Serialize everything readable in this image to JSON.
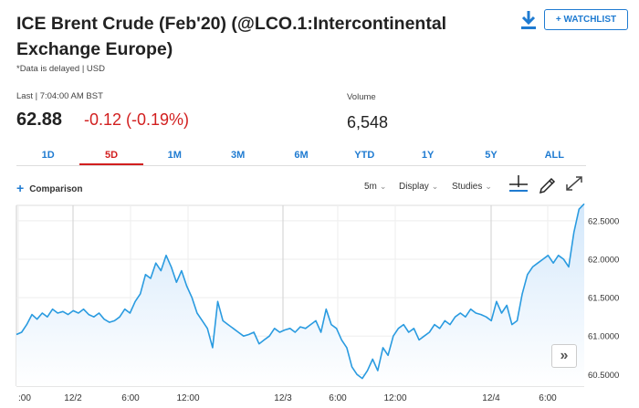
{
  "header": {
    "title": "ICE Brent Crude (Feb'20) (@LCO.1:Intercontinental Exchange Europe)",
    "note": "*Data is delayed | USD",
    "download_icon": "download-icon",
    "watchlist_label": "+ WATCHLIST"
  },
  "quote": {
    "last_label": "Last | 7:04:00 AM BST",
    "last_price": "62.88",
    "change": "-0.12 (-0.19%)",
    "volume_label": "Volume",
    "volume_value": "6,548"
  },
  "tabs": [
    {
      "label": "1D",
      "active": false
    },
    {
      "label": "5D",
      "active": true
    },
    {
      "label": "1M",
      "active": false
    },
    {
      "label": "3M",
      "active": false
    },
    {
      "label": "6M",
      "active": false
    },
    {
      "label": "YTD",
      "active": false
    },
    {
      "label": "1Y",
      "active": false
    },
    {
      "label": "5Y",
      "active": false
    },
    {
      "label": "ALL",
      "active": false
    }
  ],
  "toolbar": {
    "comparison_label": "Comparison",
    "interval": "5m",
    "display": "Display",
    "studies": "Studies"
  },
  "colors": {
    "accent": "#1f7bd1",
    "negative": "#d21f1f",
    "line": "#2a9be0",
    "area": "#d4e8fb"
  },
  "chart_data": {
    "type": "area",
    "xlabel": "",
    "ylabel": "",
    "ylim": [
      60.35,
      62.7
    ],
    "y_ticks": [
      "62.5000",
      "62.0000",
      "61.5000",
      "61.0000",
      "60.5000"
    ],
    "x_ticks": [
      ":00",
      "12/2",
      "6:00",
      "12:00",
      "12/3",
      "6:00",
      "12:00",
      "12/4",
      "6:00"
    ],
    "grid": true,
    "series": [
      {
        "values": [
          61.02,
          61.05,
          61.15,
          61.28,
          61.22,
          61.3,
          61.25,
          61.35,
          61.3,
          61.32,
          61.28,
          61.33,
          61.3,
          61.35,
          61.28,
          61.25,
          61.3,
          61.22,
          61.18,
          61.2,
          61.25,
          61.35,
          61.3,
          61.45,
          61.55,
          61.8,
          61.75,
          61.95,
          61.85,
          62.05,
          61.9,
          61.7,
          61.85,
          61.65,
          61.5,
          61.3,
          61.2,
          61.1,
          60.85,
          61.45,
          61.2,
          61.15,
          61.1,
          61.05,
          61.0,
          61.02,
          61.05,
          60.9,
          60.95,
          61.0,
          61.1,
          61.05,
          61.08,
          61.1,
          61.05,
          61.12,
          61.1,
          61.15,
          61.2,
          61.05,
          61.35,
          61.15,
          61.1,
          60.95,
          60.85,
          60.6,
          60.5,
          60.45,
          60.55,
          60.7,
          60.55,
          60.85,
          60.75,
          61.0,
          61.1,
          61.15,
          61.05,
          61.1,
          60.95,
          61.0,
          61.05,
          61.15,
          61.1,
          61.2,
          61.15,
          61.25,
          61.3,
          61.25,
          61.35,
          61.3,
          61.28,
          61.25,
          61.2,
          61.45,
          61.3,
          61.4,
          61.15,
          61.2,
          61.55,
          61.8,
          61.9,
          61.95,
          62.0,
          62.05,
          61.95,
          62.05,
          62.0,
          61.9,
          62.35,
          62.65,
          62.72
        ]
      }
    ]
  }
}
